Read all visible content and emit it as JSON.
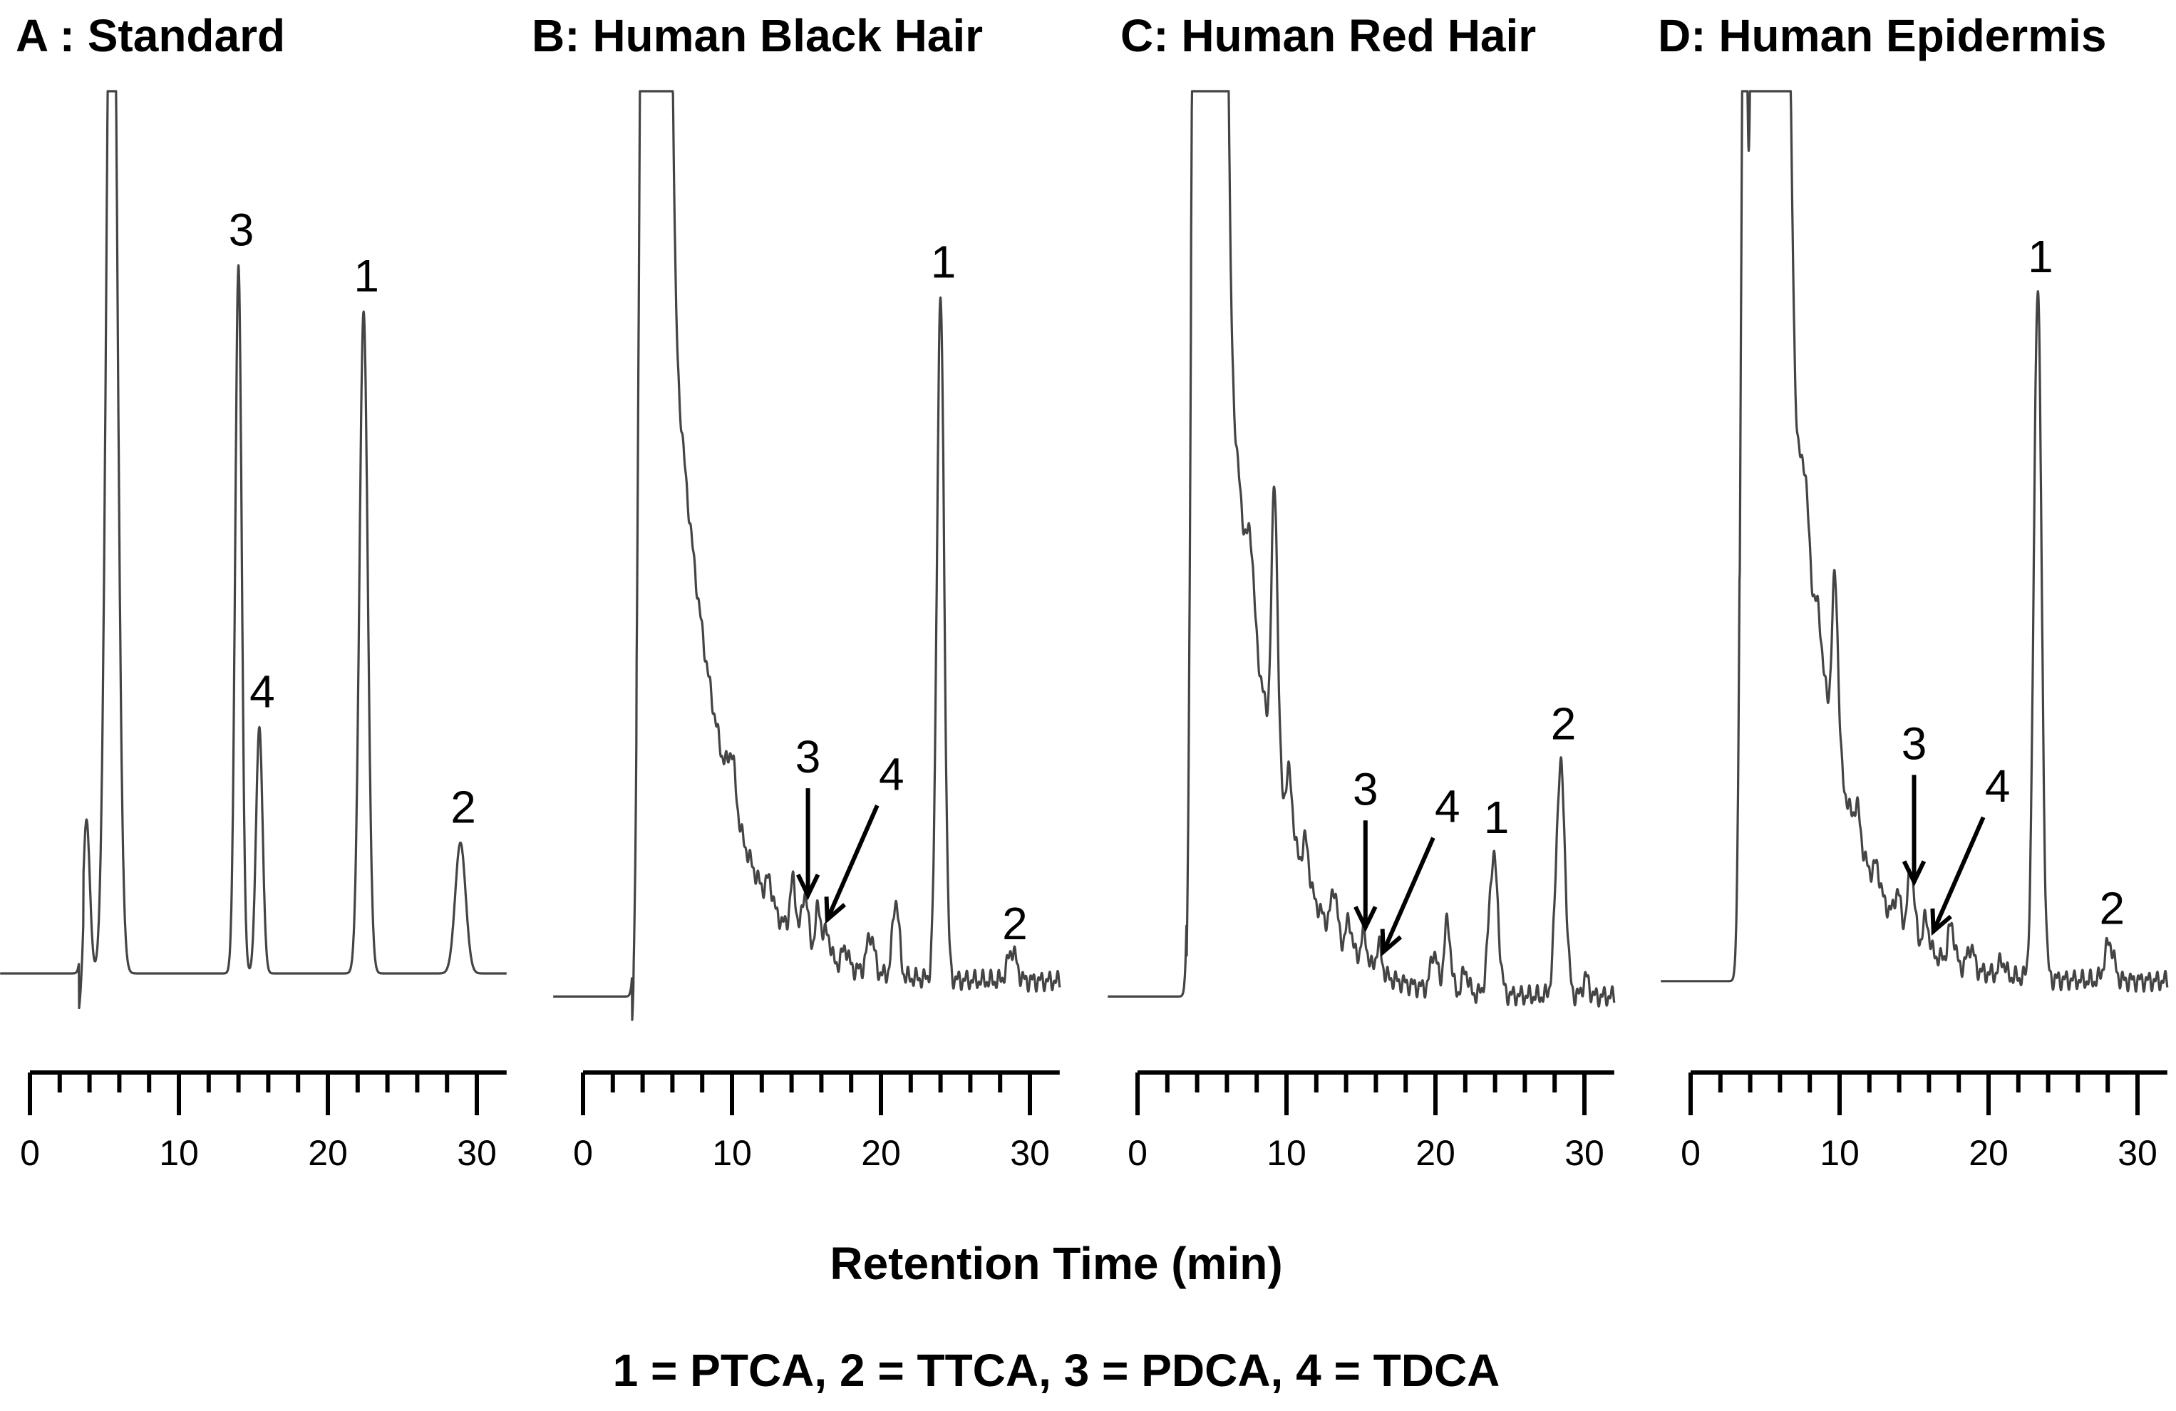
{
  "chart_data": [
    {
      "type": "line",
      "title": "A : Standard",
      "x_ticks": [
        "0",
        "10",
        "20",
        "30"
      ],
      "xlim": [
        0,
        32
      ],
      "baseline": 0.05,
      "start_level": 0.05,
      "sample_decay": null,
      "peaks": [
        {
          "x": 3.8,
          "h": 0.2,
          "w": 0.22,
          "label": ""
        },
        {
          "x": 5.5,
          "h": 1.6,
          "w": 0.35,
          "label": ""
        },
        {
          "x": 14.0,
          "h": 0.92,
          "w": 0.22,
          "label": "3"
        },
        {
          "x": 15.4,
          "h": 0.32,
          "w": 0.22,
          "label": "4"
        },
        {
          "x": 22.4,
          "h": 0.86,
          "w": 0.28,
          "label": "1"
        },
        {
          "x": 28.9,
          "h": 0.17,
          "w": 0.35,
          "label": "2"
        }
      ],
      "arrows": []
    },
    {
      "type": "line",
      "title": "B:  Human Black Hair",
      "x_ticks": [
        "0",
        "10",
        "20",
        "30"
      ],
      "xlim": [
        0,
        32
      ],
      "baseline": 0.04,
      "start_level": 0.02,
      "sample_decay": {
        "start": 6.0,
        "amplitude": 0.88,
        "rate": 0.33,
        "floor": 0.04
      },
      "peaks": [
        {
          "x": 4.0,
          "h": 1.5,
          "w": 0.25,
          "label": ""
        },
        {
          "x": 4.6,
          "h": 0.8,
          "w": 0.22,
          "label": ""
        },
        {
          "x": 5.5,
          "h": 1.5,
          "w": 0.3,
          "label": ""
        },
        {
          "x": 10.0,
          "h": 0.06,
          "w": 0.25,
          "label": ""
        },
        {
          "x": 12.5,
          "h": 0.03,
          "w": 0.2,
          "label": ""
        },
        {
          "x": 14.1,
          "h": 0.07,
          "w": 0.2,
          "label": ""
        },
        {
          "x": 14.9,
          "h": 0.07,
          "w": 0.2,
          "label": ""
        },
        {
          "x": 15.8,
          "h": 0.06,
          "w": 0.2,
          "label": ""
        },
        {
          "x": 16.4,
          "h": 0.035,
          "w": 0.2,
          "label": ""
        },
        {
          "x": 17.6,
          "h": 0.025,
          "w": 0.2,
          "label": ""
        },
        {
          "x": 19.3,
          "h": 0.05,
          "w": 0.25,
          "label": ""
        },
        {
          "x": 21.0,
          "h": 0.1,
          "w": 0.22,
          "label": ""
        },
        {
          "x": 24.0,
          "h": 0.88,
          "w": 0.25,
          "label": "1"
        },
        {
          "x": 28.8,
          "h": 0.04,
          "w": 0.3,
          "label": "2"
        }
      ],
      "arrows": [
        {
          "label": "3",
          "tip_x": 15.1
        },
        {
          "label": "4",
          "tip_x": 16.4
        }
      ]
    },
    {
      "type": "line",
      "title": "C: Human Red Hair",
      "x_ticks": [
        "0",
        "10",
        "20",
        "30"
      ],
      "xlim": [
        0,
        32
      ],
      "baseline": 0.02,
      "start_level": 0.02,
      "sample_decay": {
        "start": 6.0,
        "amplitude": 0.88,
        "rate": 0.33,
        "floor": 0.02
      },
      "peaks": [
        {
          "x": 3.8,
          "h": 1.5,
          "w": 0.22,
          "label": ""
        },
        {
          "x": 4.4,
          "h": 1.2,
          "w": 0.2,
          "label": ""
        },
        {
          "x": 5.6,
          "h": 1.5,
          "w": 0.3,
          "label": ""
        },
        {
          "x": 7.6,
          "h": 0.08,
          "w": 0.2,
          "label": ""
        },
        {
          "x": 9.2,
          "h": 0.36,
          "w": 0.2,
          "label": ""
        },
        {
          "x": 10.2,
          "h": 0.07,
          "w": 0.2,
          "label": ""
        },
        {
          "x": 11.3,
          "h": 0.05,
          "w": 0.2,
          "label": ""
        },
        {
          "x": 13.2,
          "h": 0.06,
          "w": 0.2,
          "label": ""
        },
        {
          "x": 14.2,
          "h": 0.04,
          "w": 0.2,
          "label": ""
        },
        {
          "x": 15.2,
          "h": 0.04,
          "w": 0.2,
          "label": ""
        },
        {
          "x": 16.2,
          "h": 0.035,
          "w": 0.2,
          "label": ""
        },
        {
          "x": 19.9,
          "h": 0.05,
          "w": 0.22,
          "label": ""
        },
        {
          "x": 20.8,
          "h": 0.09,
          "w": 0.22,
          "label": ""
        },
        {
          "x": 22.0,
          "h": 0.03,
          "w": 0.2,
          "label": ""
        },
        {
          "x": 23.9,
          "h": 0.18,
          "w": 0.3,
          "label": "1"
        },
        {
          "x": 28.4,
          "h": 0.3,
          "w": 0.3,
          "label": "2"
        },
        {
          "x": 30.1,
          "h": 0.025,
          "w": 0.2,
          "label": ""
        }
      ],
      "arrows": [
        {
          "label": "3",
          "tip_x": 15.3
        },
        {
          "label": "4",
          "tip_x": 16.5
        }
      ]
    },
    {
      "type": "line",
      "title": "D: Human Epidermis",
      "x_ticks": [
        "0",
        "10",
        "20",
        "30"
      ],
      "xlim": [
        0,
        32
      ],
      "baseline": 0.04,
      "start_level": 0.04,
      "sample_decay": {
        "start": 6.5,
        "amplitude": 0.88,
        "rate": 0.33,
        "floor": 0.04
      },
      "peaks": [
        {
          "x": 3.6,
          "h": 1.5,
          "w": 0.22,
          "label": ""
        },
        {
          "x": 4.2,
          "h": 1.5,
          "w": 0.2,
          "label": ""
        },
        {
          "x": 5.3,
          "h": 1.5,
          "w": 0.3,
          "label": ""
        },
        {
          "x": 6.6,
          "h": 0.4,
          "w": 0.2,
          "label": ""
        },
        {
          "x": 7.7,
          "h": 0.07,
          "w": 0.2,
          "label": ""
        },
        {
          "x": 8.6,
          "h": 0.04,
          "w": 0.2,
          "label": ""
        },
        {
          "x": 9.7,
          "h": 0.22,
          "w": 0.2,
          "label": ""
        },
        {
          "x": 11.2,
          "h": 0.04,
          "w": 0.2,
          "label": ""
        },
        {
          "x": 12.5,
          "h": 0.03,
          "w": 0.2,
          "label": ""
        },
        {
          "x": 13.9,
          "h": 0.04,
          "w": 0.2,
          "label": ""
        },
        {
          "x": 14.8,
          "h": 0.09,
          "w": 0.22,
          "label": ""
        },
        {
          "x": 15.8,
          "h": 0.04,
          "w": 0.2,
          "label": ""
        },
        {
          "x": 17.5,
          "h": 0.05,
          "w": 0.22,
          "label": ""
        },
        {
          "x": 18.8,
          "h": 0.03,
          "w": 0.22,
          "label": ""
        },
        {
          "x": 20.9,
          "h": 0.02,
          "w": 0.2,
          "label": ""
        },
        {
          "x": 23.3,
          "h": 0.9,
          "w": 0.26,
          "label": "1"
        },
        {
          "x": 28.1,
          "h": 0.05,
          "w": 0.3,
          "label": "2"
        }
      ],
      "arrows": [
        {
          "label": "3",
          "tip_x": 15.0
        },
        {
          "label": "4",
          "tip_x": 16.3
        }
      ]
    }
  ],
  "xlabel": "Retention Time (min)",
  "legend_caption": "1 = PTCA, 2 = TTCA, 3 = PDCA, 4 = TDCA"
}
